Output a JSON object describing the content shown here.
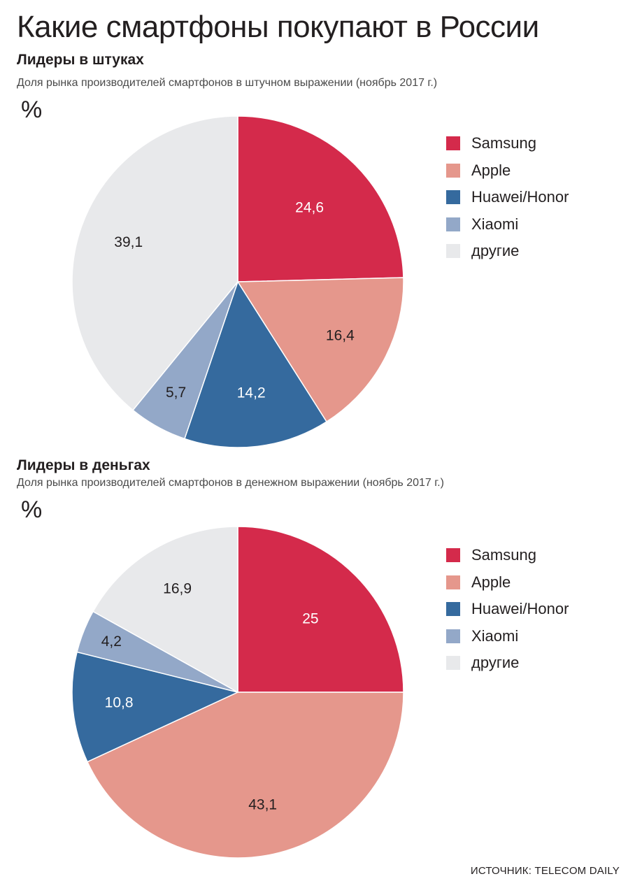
{
  "title": "Какие смартфоны покупают в России",
  "source": "ИСТОЧНИК: TELECOM DAILY",
  "chart_data": [
    {
      "type": "pie",
      "title": "Лидеры в штуках",
      "subtitle": "Доля рынка производителей смартфонов в штучном выражении (ноябрь 2017 г.)",
      "unit": "%",
      "legend_position": "right",
      "slices": [
        {
          "name": "Samsung",
          "value": 24.6,
          "label": "24,6",
          "color": "#d42a4b",
          "label_color": "#ffffff"
        },
        {
          "name": "Apple",
          "value": 16.4,
          "label": "16,4",
          "color": "#e5978c",
          "label_color": "#231f20"
        },
        {
          "name": "Huawei/Honor",
          "value": 14.2,
          "label": "14,2",
          "color": "#356a9e",
          "label_color": "#ffffff"
        },
        {
          "name": "Xiaomi",
          "value": 5.7,
          "label": "5,7",
          "color": "#93a8c8",
          "label_color": "#231f20"
        },
        {
          "name": "другие",
          "value": 39.1,
          "label": "39,1",
          "color": "#e8e9eb",
          "label_color": "#231f20"
        }
      ]
    },
    {
      "type": "pie",
      "title": "Лидеры в деньгах",
      "subtitle": "Доля рынка производителей смартфонов в денежном выражении (ноябрь 2017 г.)",
      "unit": "%",
      "legend_position": "right",
      "slices": [
        {
          "name": "Samsung",
          "value": 25,
          "label": "25",
          "color": "#d42a4b",
          "label_color": "#ffffff"
        },
        {
          "name": "Apple",
          "value": 43.1,
          "label": "43,1",
          "color": "#e5978c",
          "label_color": "#231f20"
        },
        {
          "name": "Huawei/Honor",
          "value": 10.8,
          "label": "10,8",
          "color": "#356a9e",
          "label_color": "#ffffff"
        },
        {
          "name": "Xiaomi",
          "value": 4.2,
          "label": "4,2",
          "color": "#93a8c8",
          "label_color": "#231f20"
        },
        {
          "name": "другие",
          "value": 16.9,
          "label": "16,9",
          "color": "#e8e9eb",
          "label_color": "#231f20"
        }
      ]
    }
  ]
}
